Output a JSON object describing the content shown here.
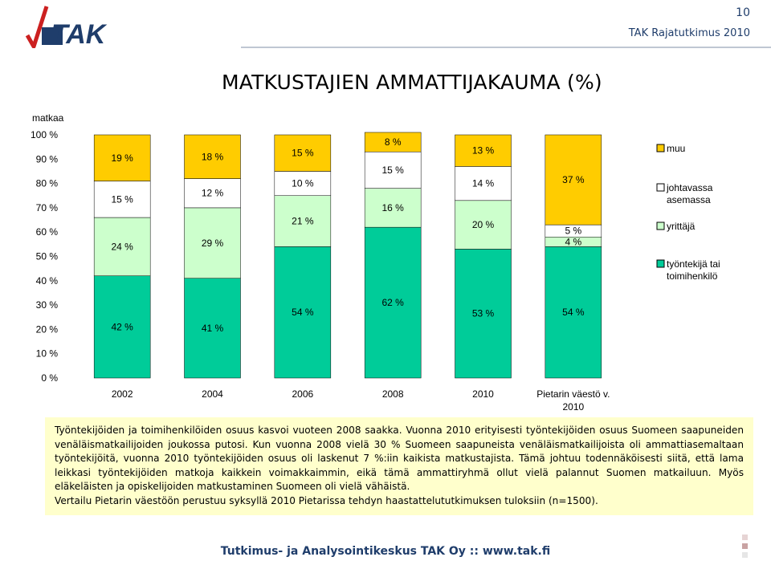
{
  "header": {
    "page_number": "10",
    "org_title": "TAK Rajatutkimus 2010",
    "logo_text": "TAK"
  },
  "slide_title": "MATKUSTAJIEN AMMATTIJAKAUMA (%)",
  "colors": {
    "tyontekija": "#00cc99",
    "yrittaja": "#ccffcc",
    "johtavassa": "#ffffff",
    "muu": "#ffcc00",
    "brand": "#1f3d6b"
  },
  "chart_data": {
    "type": "bar",
    "stacked": true,
    "ylabel": "matkaa",
    "ylim": [
      0,
      100
    ],
    "yticks": [
      "0 %",
      "10 %",
      "20 %",
      "30 %",
      "40 %",
      "50 %",
      "60 %",
      "70 %",
      "80 %",
      "90 %",
      "100 %"
    ],
    "categories": [
      "2002",
      "2004",
      "2006",
      "2008",
      "2010",
      "Pietarin väestö v. 2010"
    ],
    "series": [
      {
        "name": "työntekijä tai toimihenkilö",
        "key": "tyontekija",
        "values": [
          42,
          41,
          54,
          62,
          53,
          54
        ]
      },
      {
        "name": "yrittäjä",
        "key": "yrittaja",
        "values": [
          24,
          29,
          21,
          16,
          20,
          4
        ]
      },
      {
        "name": "johtavassa asemassa",
        "key": "johtavassa",
        "values": [
          15,
          12,
          10,
          15,
          14,
          5
        ]
      },
      {
        "name": "muu",
        "key": "muu",
        "values": [
          19,
          18,
          15,
          8,
          13,
          37
        ]
      }
    ],
    "legend_position": "right",
    "legend_order": [
      "muu",
      "johtavassa",
      "yrittaja",
      "tyontekija"
    ]
  },
  "caption": {
    "paragraph1": "Työntekijöiden ja toimihenkilöiden osuus kasvoi vuoteen 2008 saakka. Vuonna 2010 erityisesti työntekijöiden osuus Suomeen saapuneiden venäläismatkailijoiden joukossa putosi. Kun vuonna 2008 vielä 30 % Suomeen saapuneista venäläismatkailijoista oli ammattiasemaltaan työntekijöitä, vuonna 2010 työntekijöiden osuus oli laskenut 7 %:iin kaikista matkustajista. Tämä johtuu todennäköisesti siitä, että lama leikkasi työntekijöiden matkoja kaikkein voimakkaimmin, eikä tämä ammattiryhmä ollut vielä palannut Suomen matkailuun. Myös eläkeläisten ja opiskelijoiden matkustaminen Suomeen oli vielä vähäistä.",
    "paragraph2": "Vertailu Pietarin väestöön perustuu syksyllä 2010 Pietarissa tehdyn haastattelututkimuksen tuloksiin (n=1500)."
  },
  "footer": {
    "text": "Tutkimus- ja Analysointikeskus TAK Oy :: www.tak.fi"
  }
}
